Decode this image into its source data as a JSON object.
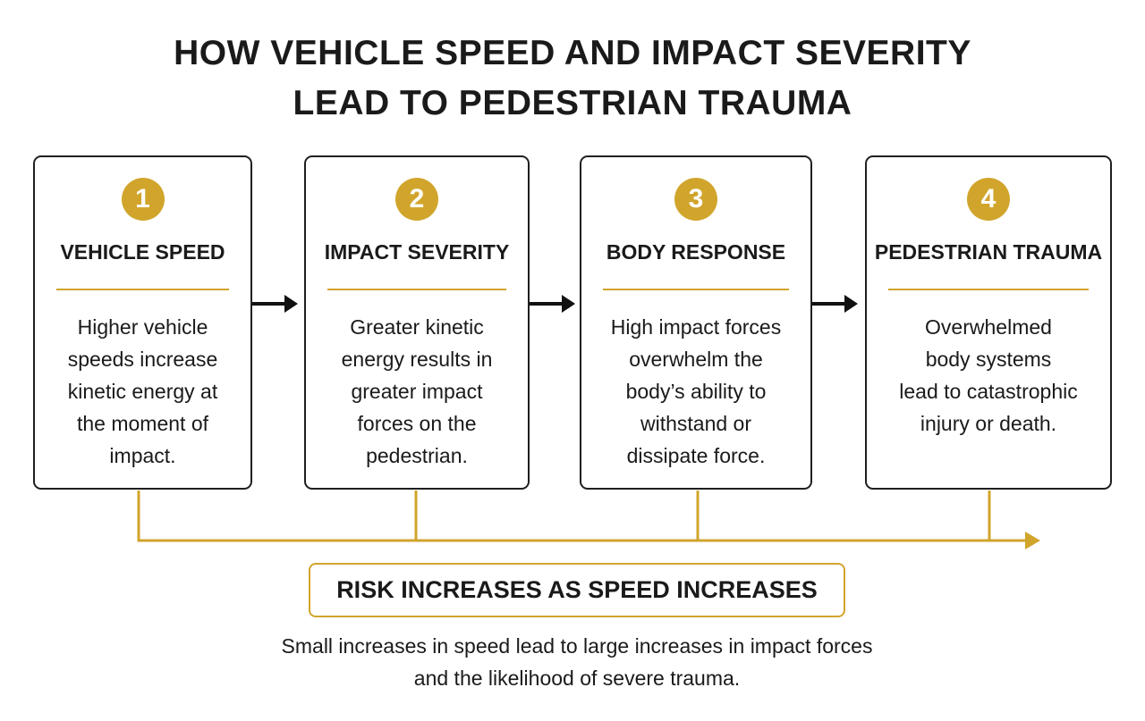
{
  "title": {
    "line1": "HOW VEHICLE SPEED AND IMPACT SEVERITY",
    "line2": "LEAD TO PEDESTRIAN TRAUMA"
  },
  "steps": [
    {
      "number": "1",
      "title": "VEHICLE SPEED",
      "body": [
        "Higher vehicle",
        "speeds increase",
        "kinetic energy at",
        "the moment of",
        "impact."
      ]
    },
    {
      "number": "2",
      "title": "IMPACT SEVERITY",
      "body": [
        "Greater kinetic",
        "energy results in",
        "greater impact",
        "forces on the",
        "pedestrian."
      ]
    },
    {
      "number": "3",
      "title": "BODY RESPONSE",
      "body": [
        "High impact forces",
        "overwhelm the",
        "body’s ability to",
        "withstand or",
        "dissipate force."
      ]
    },
    {
      "number": "4",
      "title": "PEDESTRIAN TRAUMA",
      "body": [
        "Overwhelmed",
        "body systems",
        "lead to catastrophic",
        "injury or death."
      ]
    }
  ],
  "risk_banner": "RISK INCREASES AS SPEED INCREASES",
  "footnote": {
    "line1": "Small increases in speed lead to large increases in impact forces",
    "line2": "and the likelihood of severe trauma."
  },
  "colors": {
    "accent": "#d1a52c",
    "text": "#1a1a1a",
    "border": "#1f1f1f",
    "background": "#ffffff"
  },
  "icons": {
    "step_arrow": "right-arrow-icon",
    "timeline_arrow": "arrowhead-right-icon"
  }
}
